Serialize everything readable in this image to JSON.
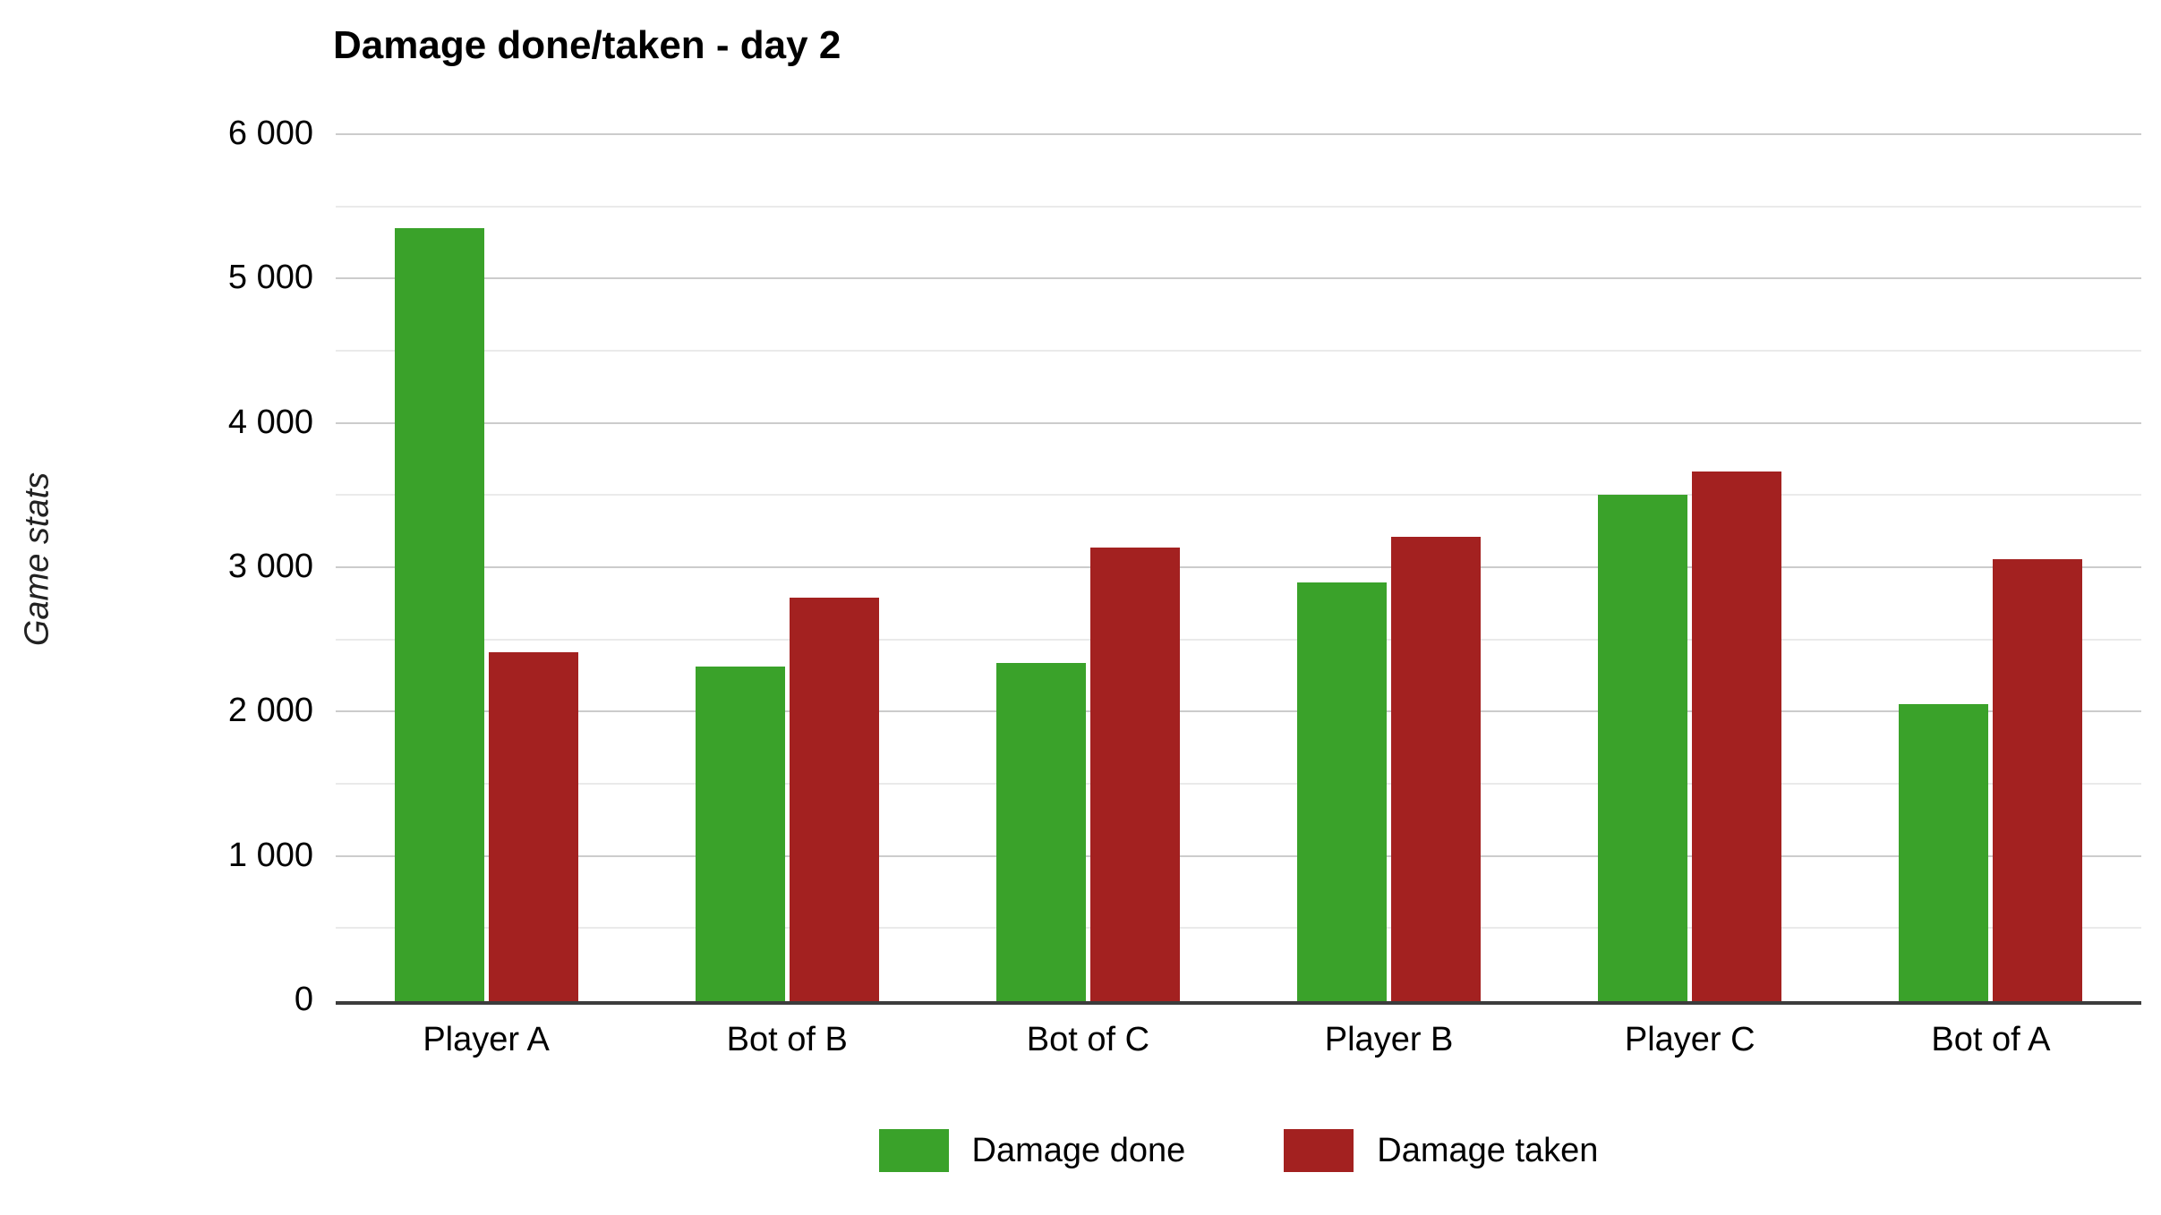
{
  "chart_data": {
    "type": "bar",
    "title": "Damage done/taken - day 2",
    "ylabel": "Game stats",
    "xlabel": "",
    "categories": [
      "Player A",
      "Bot of B",
      "Bot of C",
      "Player B",
      "Player C",
      "Bot of A"
    ],
    "series": [
      {
        "name": "Damage done",
        "color": "#3aa22a",
        "values": [
          5355,
          2320,
          2345,
          2900,
          3510,
          2055
        ]
      },
      {
        "name": "Damage taken",
        "color": "#a32120",
        "values": [
          2420,
          2795,
          3140,
          3215,
          3670,
          3060
        ]
      }
    ],
    "ylim": [
      0,
      6000
    ],
    "y_major_step": 1000,
    "y_minor_step": 500,
    "y_tick_labels": [
      "0",
      "1 000",
      "2 000",
      "3 000",
      "4 000",
      "5 000",
      "6 000"
    ],
    "grid": true,
    "legend_position": "bottom",
    "axis_color": "#3c3c3c",
    "gridline_major_color": "#cccccc",
    "gridline_minor_color": "#eaeaea"
  }
}
